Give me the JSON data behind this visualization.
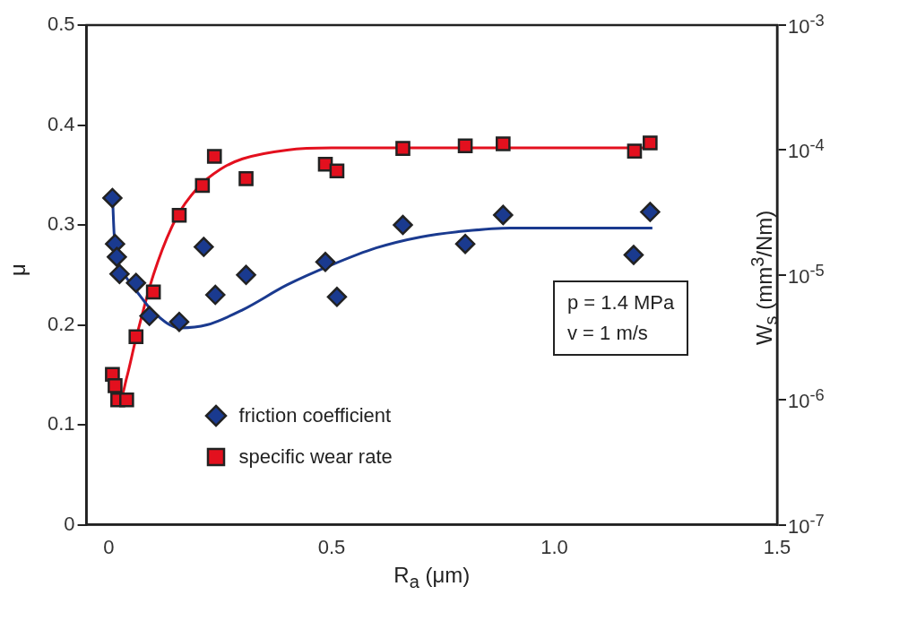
{
  "chart_data": {
    "type": "scatter",
    "xlabel": "R$_{a}$ (μm)",
    "ylabel": "μ",
    "y2label": "W$_{s}$ (mm$^{3}$/Nm)",
    "xlim": [
      -0.05,
      1.5
    ],
    "xticks": [
      0,
      0.5,
      {
        "value": 1,
        "label": "1.0"
      },
      1.5
    ],
    "ylim": [
      0,
      0.5
    ],
    "yticks": [
      0,
      0.1,
      0.2,
      0.3,
      0.4,
      0.5
    ],
    "y2lim": [
      1e-07,
      0.001
    ],
    "y2ticks": [
      {
        "value": 1e-07,
        "label": "10$^{-7}$"
      },
      {
        "value": 1e-06,
        "label": "10$^{-6}$"
      },
      {
        "value": 1e-05,
        "label": "10$^{-5}$"
      },
      {
        "value": 0.0001,
        "label": "10$^{-4}$"
      },
      {
        "value": 0.001,
        "label": "10$^{-3}$"
      }
    ],
    "log": "y2",
    "grid": false,
    "legend": "bottom left",
    "annotations": [
      "p = 1.4 MPa",
      "v = 1 m/s"
    ],
    "series": [
      {
        "name": "friction coefficient",
        "type": "scatter",
        "marker": "diamond",
        "color": "#1a3a8f",
        "x": [
          0.008,
          0.014,
          0.018,
          0.024,
          0.061,
          0.091,
          0.158,
          0.213,
          0.239,
          0.308,
          0.486,
          0.512,
          0.66,
          0.8,
          0.885,
          1.178,
          1.215
        ],
        "values": [
          0.327,
          0.281,
          0.268,
          0.251,
          0.242,
          0.209,
          0.203,
          0.278,
          0.23,
          0.25,
          0.263,
          0.228,
          0.3,
          0.281,
          0.31,
          0.27,
          0.313
        ]
      },
      {
        "name": "specific wear rate",
        "type": "scatter",
        "marker": "square",
        "axis": "y2",
        "color": "#e3101e",
        "x": [
          0.008,
          0.014,
          0.02,
          0.04,
          0.061,
          0.1,
          0.158,
          0.21,
          0.237,
          0.308,
          0.486,
          0.512,
          0.66,
          0.8,
          0.885,
          1.18,
          1.215
        ],
        "values": [
          1.6e-06,
          1.3e-06,
          1e-06,
          1e-06,
          3.2e-06,
          7.3e-06,
          3e-05,
          5.2e-05,
          8.9e-05,
          5.9e-05,
          7.7e-05,
          6.8e-05,
          0.000103,
          0.000108,
          0.000112,
          9.8e-05,
          0.000114
        ]
      },
      {
        "type": "line",
        "marker": "none",
        "color": "#1a3a8f",
        "x": [
          0.008,
          0.012,
          0.02,
          0.04,
          0.06,
          0.1,
          0.16,
          0.22,
          0.3,
          0.4,
          0.5,
          0.6,
          0.7,
          0.8,
          0.9,
          1.0,
          1.22
        ],
        "values": [
          0.332,
          0.29,
          0.265,
          0.247,
          0.235,
          0.213,
          0.197,
          0.2,
          0.215,
          0.24,
          0.26,
          0.277,
          0.288,
          0.294,
          0.297,
          0.297,
          0.297
        ]
      },
      {
        "type": "line",
        "marker": "none",
        "axis": "y2",
        "color": "#e3101e",
        "x": [
          0.008,
          0.015,
          0.025,
          0.04,
          0.06,
          0.1,
          0.15,
          0.2,
          0.25,
          0.3,
          0.4,
          0.5,
          0.7,
          1.0,
          1.22
        ],
        "values": [
          1.6e-06,
          1.1e-06,
          1e-06,
          1.5e-06,
          3e-06,
          1e-05,
          2.8e-05,
          5e-05,
          7e-05,
          8.5e-05,
          0.0001,
          0.000104,
          0.000104,
          0.000104,
          0.000104
        ]
      }
    ]
  }
}
